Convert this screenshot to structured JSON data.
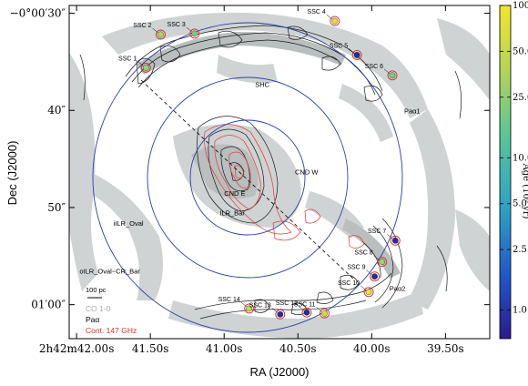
{
  "chart_data": {
    "type": "scatter",
    "xlabel": "RA (J2000)",
    "ylabel": "Dec (J2000)",
    "x_ticks": [
      {
        "label": "2h42m42.00s",
        "value": 42.0
      },
      {
        "label": "41.50s",
        "value": 41.5
      },
      {
        "label": "41.00s",
        "value": 41.0
      },
      {
        "label": "40.50s",
        "value": 40.5
      },
      {
        "label": "40.00s",
        "value": 40.0
      },
      {
        "label": "39.50s",
        "value": 39.5
      }
    ],
    "y_ticks": [
      {
        "label": "−0°00′30″",
        "value": 30
      },
      {
        "label": "40″",
        "value": 40
      },
      {
        "label": "50″",
        "value": 50
      },
      {
        "label": "01′00″",
        "value": 60
      }
    ],
    "xlim": [
      42.05,
      39.2
    ],
    "ylim": [
      63.5,
      29.2
    ],
    "colorbar": {
      "label": "Age (10⁵ yr)",
      "scale": "log",
      "ticks": [
        "100.0",
        "50.0",
        "25.0",
        "10.0",
        "5.0",
        "2.5",
        "1.0"
      ],
      "range": [
        0.65,
        100
      ],
      "colors": [
        "#2b1a8c",
        "#1f55c8",
        "#2fa3c4",
        "#58c49a",
        "#b2d35a",
        "#f3e62a"
      ]
    },
    "sources": [
      {
        "name": "SSC 1",
        "x": 41.53,
        "y": 35.6,
        "age": 30
      },
      {
        "name": "SSC 2",
        "x": 41.43,
        "y": 32.2,
        "age": 40
      },
      {
        "name": "SSC 3",
        "x": 41.2,
        "y": 32.1,
        "age": 20
      },
      {
        "name": "SSC 4",
        "x": 40.25,
        "y": 30.8,
        "age": 70
      },
      {
        "name": "SSC 5",
        "x": 40.1,
        "y": 34.3,
        "age": 0.9
      },
      {
        "name": "SSC 6",
        "x": 39.86,
        "y": 36.4,
        "age": 20
      },
      {
        "name": "SSC 7",
        "x": 39.84,
        "y": 53.4,
        "age": 0.9
      },
      {
        "name": "SSC 8",
        "x": 39.93,
        "y": 55.6,
        "age": 30
      },
      {
        "name": "SSC 9",
        "x": 39.98,
        "y": 57.1,
        "age": 0.9
      },
      {
        "name": "SSC 10",
        "x": 40.02,
        "y": 58.7,
        "age": 80
      },
      {
        "name": "SSC 11",
        "x": 40.32,
        "y": 60.9,
        "age": 60
      },
      {
        "name": "SSC 12",
        "x": 40.44,
        "y": 60.8,
        "age": 0.9
      },
      {
        "name": "SSC 13",
        "x": 40.62,
        "y": 61.0,
        "age": 0.9
      },
      {
        "name": "SSC 14",
        "x": 40.83,
        "y": 60.4,
        "age": 50
      }
    ],
    "annotations": [
      {
        "text": "SHC",
        "x": 40.79,
        "y": 37.6
      },
      {
        "text": "Paα1",
        "x": 39.78,
        "y": 40.3
      },
      {
        "text": "CND W",
        "x": 40.52,
        "y": 46.6
      },
      {
        "text": "CND E",
        "x": 41.0,
        "y": 48.8
      },
      {
        "text": "ILR_Bar",
        "x": 41.03,
        "y": 50.8
      },
      {
        "text": "iILR_Oval",
        "x": 41.75,
        "y": 51.9
      },
      {
        "text": "Paα2",
        "x": 39.88,
        "y": 58.6
      },
      {
        "text": "oILR_Oval−CR_Bar",
        "x": 41.98,
        "y": 56.8
      }
    ],
    "scale_bar": "100 pc",
    "legend": [
      {
        "text": "CO 1-0",
        "color": "#a8a8a8"
      },
      {
        "text": "Paα",
        "color": "#000000"
      },
      {
        "text": "Cont. 147 GHz",
        "color": "#e03030"
      }
    ],
    "grid": false
  }
}
